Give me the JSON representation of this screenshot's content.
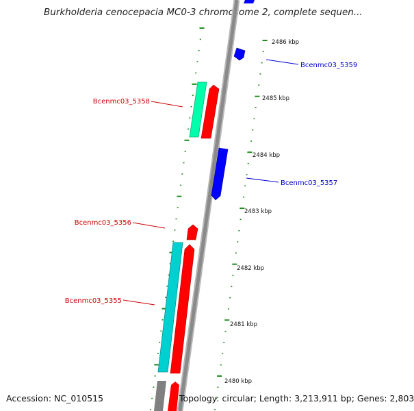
{
  "map": {
    "title": "Burkholderia cenocepacia MC0-3 chromosome 2, complete sequen...",
    "accession": "Accession: NC_010515",
    "summary": "Topology: circular; Length: 3,213,911 bp; Genes: 2,803",
    "colors": {
      "backbone": "#8a8a8a",
      "tick": "#228b22",
      "forward_gene": "#ff0000",
      "reverse_gene": "#0000ff",
      "rna_gene": "#00ffaa",
      "cds_gene": "#00d0d0",
      "other_gene": "#808080"
    },
    "kbp_ticks": [
      {
        "label": "2486 kbp"
      },
      {
        "label": "2485 kbp"
      },
      {
        "label": "2484 kbp"
      },
      {
        "label": "2483 kbp"
      },
      {
        "label": "2482 kbp"
      },
      {
        "label": "2481 kbp"
      },
      {
        "label": "2480 kbp"
      }
    ],
    "gene_labels": [
      {
        "text": "Bcenmc03_5359",
        "strand": "reverse"
      },
      {
        "text": "Bcenmc03_5358",
        "strand": "forward"
      },
      {
        "text": "Bcenmc03_5357",
        "strand": "reverse"
      },
      {
        "text": "Bcenmc03_5356",
        "strand": "forward"
      },
      {
        "text": "Bcenmc03_5355",
        "strand": "forward"
      }
    ]
  }
}
